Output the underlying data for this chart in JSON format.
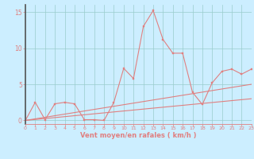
{
  "xlabel": "Vent moyen/en rafales ( km/h )",
  "bg_color": "#cceeff",
  "grid_color": "#99cccc",
  "line_color": "#e08080",
  "xlim": [
    0,
    23
  ],
  "ylim": [
    -0.5,
    16
  ],
  "xticks": [
    0,
    1,
    2,
    3,
    4,
    5,
    6,
    7,
    8,
    9,
    10,
    11,
    12,
    13,
    14,
    15,
    16,
    17,
    18,
    19,
    20,
    21,
    22,
    23
  ],
  "yticks": [
    0,
    5,
    10,
    15
  ],
  "line1_x": [
    0,
    1,
    2,
    3,
    4,
    5,
    6,
    7,
    8,
    9,
    10,
    11,
    12,
    13,
    14,
    15,
    16,
    17,
    18,
    19,
    20,
    21,
    22,
    23
  ],
  "line1_y": [
    0.0,
    2.5,
    0.1,
    2.3,
    2.5,
    2.3,
    0.1,
    0.1,
    0.0,
    2.5,
    7.2,
    5.8,
    13.0,
    15.2,
    11.2,
    9.3,
    9.3,
    3.9,
    2.2,
    5.2,
    6.8,
    7.1,
    6.4,
    7.1
  ],
  "line2_x": [
    0,
    23
  ],
  "line2_y": [
    0.0,
    5.0
  ],
  "line3_x": [
    0,
    23
  ],
  "line3_y": [
    0.0,
    3.0
  ],
  "xlabel_fontsize": 6,
  "tick_fontsize": 4.5,
  "ytick_fontsize": 5.5
}
